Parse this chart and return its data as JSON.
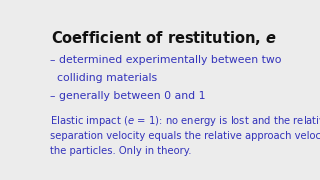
{
  "background_color": "#ececec",
  "title_regular": "Coefficient of restitution, ",
  "title_italic": "e",
  "title_fontsize": 10.5,
  "title_color": "#111111",
  "bullet_color": "#3333bb",
  "bullet_fontsize": 7.8,
  "bullet1_line1": "– determined experimentally between two",
  "bullet1_line2": "  colliding materials",
  "bullet2": "– generally between 0 and 1",
  "elastic_color": "#3333bb",
  "elastic_fontsize": 7.2,
  "elastic_prefix": "Elastic impact (",
  "elastic_e": "e",
  "elastic_suffix": " = 1):",
  "elastic_body": " no energy is lost and the relative\nseparation velocity equals the relative approach velocity of\nthe particles. Only in theory."
}
